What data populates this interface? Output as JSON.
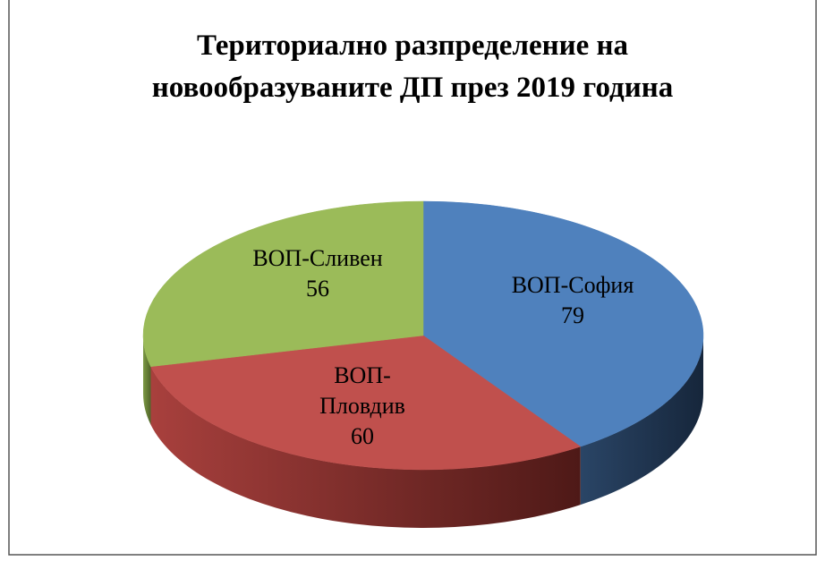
{
  "chart_data": {
    "type": "pie",
    "title": "Териториално разпределение на новообразуваните ДП през 2019 година",
    "categories": [
      "ВОП-София",
      "ВОП-Пловдив",
      "ВОП-Сливен"
    ],
    "values": [
      79,
      60,
      56
    ],
    "colors": [
      "#4f81bd",
      "#c0504d",
      "#9bbb59"
    ]
  }
}
